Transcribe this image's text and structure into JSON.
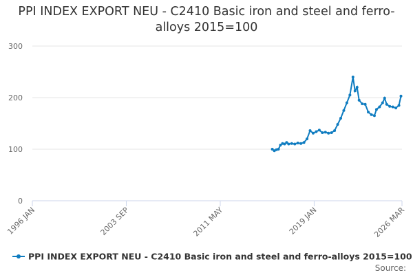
{
  "chart_data": {
    "type": "line",
    "title": "PPI INDEX EXPORT NEU - C2410 Basic iron and steel and ferro-alloys 2015=100",
    "source": "Source:",
    "x": [
      "2015 AUG",
      "2015 OCT",
      "2015 DEC",
      "2016 FEB",
      "2016 APR",
      "2016 JUN",
      "2016 AUG",
      "2016 OCT",
      "2016 DEC",
      "2017 MAR",
      "2017 JUN",
      "2017 SEP",
      "2017 DEC",
      "2018 MAR",
      "2018 JUN",
      "2018 SEP",
      "2018 DEC",
      "2019 MAR",
      "2019 JUN",
      "2019 SEP",
      "2019 DEC",
      "2020 MAR",
      "2020 JUN",
      "2020 SEP",
      "2020 DEC",
      "2021 MAR",
      "2021 JUN",
      "2021 SEP",
      "2021 DEC",
      "2022 MAR",
      "2022 MAY",
      "2022 JUL",
      "2022 SEP",
      "2022 DEC",
      "2023 MAR",
      "2023 JUN",
      "2023 SEP",
      "2023 DEC",
      "2024 FEB",
      "2024 MAY",
      "2024 AUG",
      "2024 OCT",
      "2024 DEC",
      "2025 MAR",
      "2025 JUN",
      "2025 SEP",
      "2025 DEC",
      "2026 FEB"
    ],
    "series": [
      {
        "name": "PPI INDEX EXPORT NEU - C2410 Basic iron and steel and ferro-alloys 2015=100",
        "color": "#0f7cc0",
        "values": [
          100,
          97,
          99,
          100,
          108,
          111,
          110,
          113,
          110,
          111,
          110,
          112,
          111,
          113,
          120,
          136,
          131,
          134,
          137,
          132,
          133,
          131,
          132,
          136,
          148,
          160,
          175,
          190,
          205,
          240,
          213,
          220,
          195,
          188,
          187,
          172,
          167,
          165,
          177,
          182,
          190,
          199,
          187,
          183,
          182,
          180,
          185,
          203
        ]
      }
    ],
    "xlim": [
      "1996 JAN",
      "2026 MAR"
    ],
    "xticks": [
      "1996 JAN",
      "2003 SEP",
      "2011 MAY",
      "2019 JAN",
      "2026 MAR"
    ],
    "ylim": [
      0,
      300
    ],
    "yticks": [
      0,
      100,
      200,
      300
    ],
    "grid": true,
    "legend": "bottom"
  }
}
